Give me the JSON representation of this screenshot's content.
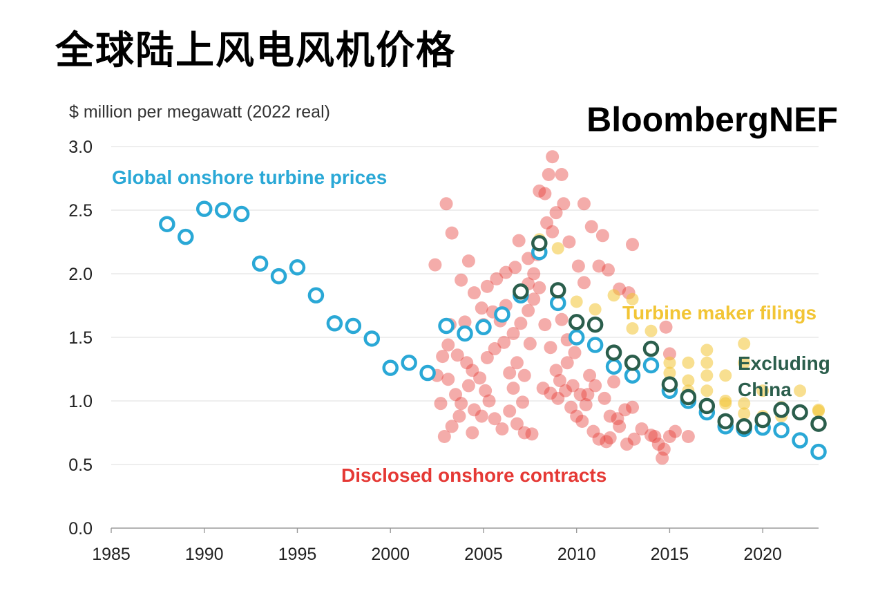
{
  "page": {
    "title": "全球陆上风电风机价格"
  },
  "chart_data": {
    "type": "scatter",
    "ylabel": "$ million per megawatt (2022 real)",
    "brand": "BloombergNEF",
    "xlim": [
      1985,
      2023
    ],
    "ylim": [
      0,
      3.0
    ],
    "x_ticks": [
      1985,
      1990,
      1995,
      2000,
      2005,
      2010,
      2015,
      2020
    ],
    "y_ticks": [
      0.0,
      0.5,
      1.0,
      1.5,
      2.0,
      2.5,
      3.0
    ],
    "y_tick_labels": [
      "0.0",
      "0.5",
      "1.0",
      "1.5",
      "2.0",
      "2.5",
      "3.0"
    ],
    "grid": "horizontal",
    "colors": {
      "global": "#2aa8d6",
      "excluding_china": "#2b5e4c",
      "contracts": "#e53935",
      "filings": "#f2c535"
    },
    "annotations": {
      "global": "Global onshore turbine prices",
      "filings": "Turbine maker filings",
      "excluding_china_line1": "Excluding",
      "excluding_china_line2": "China",
      "contracts": "Disclosed onshore contracts"
    },
    "series": [
      {
        "name": "Global onshore turbine prices",
        "style": "open-circle",
        "points": [
          [
            1988,
            2.39
          ],
          [
            1989,
            2.29
          ],
          [
            1990,
            2.51
          ],
          [
            1991,
            2.5
          ],
          [
            1992,
            2.47
          ],
          [
            1993,
            2.08
          ],
          [
            1994,
            1.98
          ],
          [
            1995,
            2.05
          ],
          [
            1996,
            1.83
          ],
          [
            1997,
            1.61
          ],
          [
            1998,
            1.59
          ],
          [
            1999,
            1.49
          ],
          [
            2000,
            1.26
          ],
          [
            2001,
            1.3
          ],
          [
            2002,
            1.22
          ],
          [
            2003,
            1.59
          ],
          [
            2004,
            1.53
          ],
          [
            2005,
            1.58
          ],
          [
            2006,
            1.68
          ],
          [
            2007,
            1.83
          ],
          [
            2008,
            2.17
          ],
          [
            2009,
            1.77
          ],
          [
            2010,
            1.5
          ],
          [
            2011,
            1.44
          ],
          [
            2012,
            1.27
          ],
          [
            2013,
            1.2
          ],
          [
            2014,
            1.28
          ],
          [
            2015,
            1.08
          ],
          [
            2016,
            1.0
          ],
          [
            2017,
            0.91
          ],
          [
            2018,
            0.8
          ],
          [
            2019,
            0.78
          ],
          [
            2020,
            0.79
          ],
          [
            2021,
            0.77
          ],
          [
            2022,
            0.69
          ],
          [
            2023,
            0.6
          ]
        ]
      },
      {
        "name": "Excluding China",
        "style": "open-circle",
        "points": [
          [
            2007,
            1.86
          ],
          [
            2008,
            2.24
          ],
          [
            2009,
            1.87
          ],
          [
            2010,
            1.62
          ],
          [
            2011,
            1.6
          ],
          [
            2012,
            1.38
          ],
          [
            2013,
            1.3
          ],
          [
            2014,
            1.41
          ],
          [
            2015,
            1.13
          ],
          [
            2016,
            1.03
          ],
          [
            2017,
            0.96
          ],
          [
            2018,
            0.84
          ],
          [
            2019,
            0.8
          ],
          [
            2020,
            0.85
          ],
          [
            2021,
            0.93
          ],
          [
            2022,
            0.91
          ],
          [
            2023,
            0.82
          ]
        ]
      },
      {
        "name": "Turbine maker filings",
        "style": "filled-circle",
        "points": [
          [
            2008,
            2.27
          ],
          [
            2009,
            2.2
          ],
          [
            2010,
            1.78
          ],
          [
            2011,
            1.72
          ],
          [
            2012,
            1.83
          ],
          [
            2013,
            1.57
          ],
          [
            2013,
            1.8
          ],
          [
            2014,
            1.55
          ],
          [
            2015,
            1.3
          ],
          [
            2015,
            1.22
          ],
          [
            2016,
            1.3
          ],
          [
            2016,
            1.16
          ],
          [
            2016,
            1.08
          ],
          [
            2017,
            1.4
          ],
          [
            2017,
            1.3
          ],
          [
            2017,
            1.2
          ],
          [
            2017,
            1.08
          ],
          [
            2018,
            1.2
          ],
          [
            2018,
            1.0
          ],
          [
            2018,
            0.98
          ],
          [
            2019,
            1.45
          ],
          [
            2019,
            1.3
          ],
          [
            2019,
            0.98
          ],
          [
            2019,
            0.9
          ],
          [
            2020,
            1.08
          ],
          [
            2020,
            0.88
          ],
          [
            2021,
            0.95
          ],
          [
            2021,
            0.88
          ],
          [
            2022,
            1.08
          ],
          [
            2022,
            0.9
          ],
          [
            2023,
            0.93
          ],
          [
            2023,
            0.92
          ]
        ]
      },
      {
        "name": "Disclosed onshore contracts",
        "style": "filled-circle",
        "points": [
          [
            2003.0,
            2.55
          ],
          [
            2003.3,
            2.32
          ],
          [
            2002.4,
            2.07
          ],
          [
            2004.2,
            2.1
          ],
          [
            2003.8,
            1.95
          ],
          [
            2004.5,
            1.85
          ],
          [
            2005.2,
            1.9
          ],
          [
            2005.7,
            1.96
          ],
          [
            2006.2,
            2.01
          ],
          [
            2006.7,
            2.05
          ],
          [
            2006.9,
            2.26
          ],
          [
            2007.4,
            2.12
          ],
          [
            2007.7,
            2.0
          ],
          [
            2008.0,
            2.65
          ],
          [
            2008.3,
            2.63
          ],
          [
            2008.5,
            2.78
          ],
          [
            2008.7,
            2.33
          ],
          [
            2008.9,
            2.48
          ],
          [
            2009.3,
            2.55
          ],
          [
            2009.6,
            2.25
          ],
          [
            2010.1,
            2.06
          ],
          [
            2010.4,
            1.93
          ],
          [
            2010.8,
            2.37
          ],
          [
            2011.2,
            2.06
          ],
          [
            2011.7,
            2.03
          ],
          [
            2012.3,
            1.88
          ],
          [
            2013.0,
            2.23
          ],
          [
            2008.7,
            2.92
          ],
          [
            2009.2,
            2.78
          ],
          [
            2010.4,
            2.55
          ],
          [
            2011.4,
            2.3
          ],
          [
            2003.1,
            1.44
          ],
          [
            2003.6,
            1.36
          ],
          [
            2004.1,
            1.3
          ],
          [
            2004.4,
            1.24
          ],
          [
            2004.8,
            1.18
          ],
          [
            2005.2,
            1.34
          ],
          [
            2005.6,
            1.41
          ],
          [
            2006.1,
            1.46
          ],
          [
            2006.6,
            1.53
          ],
          [
            2007.0,
            1.61
          ],
          [
            2007.4,
            1.71
          ],
          [
            2007.7,
            1.8
          ],
          [
            2008.0,
            1.89
          ],
          [
            2008.3,
            1.6
          ],
          [
            2008.6,
            1.42
          ],
          [
            2008.9,
            1.24
          ],
          [
            2009.1,
            1.16
          ],
          [
            2009.4,
            1.08
          ],
          [
            2009.7,
            0.95
          ],
          [
            2010.0,
            0.88
          ],
          [
            2010.3,
            0.84
          ],
          [
            2010.6,
            1.05
          ],
          [
            2010.9,
            0.76
          ],
          [
            2011.2,
            0.7
          ],
          [
            2011.6,
            0.68
          ],
          [
            2011.8,
            0.71
          ],
          [
            2012.2,
            0.86
          ],
          [
            2012.6,
            0.93
          ],
          [
            2013.0,
            0.95
          ],
          [
            2013.5,
            0.78
          ],
          [
            2014.0,
            0.73
          ],
          [
            2014.4,
            0.66
          ],
          [
            2014.7,
            0.62
          ],
          [
            2015.0,
            0.72
          ],
          [
            2015.3,
            0.76
          ],
          [
            2016.0,
            0.72
          ],
          [
            2012.7,
            0.66
          ],
          [
            2012.8,
            1.85
          ],
          [
            2014.8,
            1.58
          ],
          [
            2015.0,
            1.37
          ],
          [
            2003.1,
            1.17
          ],
          [
            2003.5,
            1.05
          ],
          [
            2003.8,
            0.98
          ],
          [
            2004.2,
            1.12
          ],
          [
            2004.5,
            0.93
          ],
          [
            2004.9,
            0.88
          ],
          [
            2005.3,
            1.0
          ],
          [
            2005.6,
            0.86
          ],
          [
            2006.0,
            0.78
          ],
          [
            2006.4,
            0.92
          ],
          [
            2006.8,
            0.82
          ],
          [
            2007.2,
            0.75
          ],
          [
            2007.6,
            0.74
          ],
          [
            2002.8,
            1.35
          ],
          [
            2002.5,
            1.2
          ],
          [
            2002.9,
            0.72
          ],
          [
            2003.3,
            0.8
          ],
          [
            2003.7,
            0.88
          ],
          [
            2004.4,
            0.75
          ],
          [
            2005.0,
            1.6
          ],
          [
            2005.5,
            1.7
          ],
          [
            2006.2,
            1.75
          ],
          [
            2006.8,
            1.3
          ],
          [
            2007.2,
            1.2
          ],
          [
            2007.5,
            1.45
          ],
          [
            2008.2,
            1.1
          ],
          [
            2008.6,
            1.06
          ],
          [
            2009.0,
            1.02
          ],
          [
            2009.5,
            1.3
          ],
          [
            2009.8,
            1.12
          ],
          [
            2010.2,
            1.05
          ],
          [
            2010.5,
            0.97
          ],
          [
            2011.0,
            1.12
          ],
          [
            2011.5,
            1.02
          ],
          [
            2012.0,
            1.15
          ],
          [
            2012.3,
            0.8
          ],
          [
            2013.1,
            0.7
          ],
          [
            2007.4,
            1.92
          ],
          [
            2007.9,
            2.15
          ],
          [
            2008.4,
            2.4
          ],
          [
            2009.2,
            1.64
          ],
          [
            2009.5,
            1.48
          ],
          [
            2004.9,
            1.73
          ],
          [
            2005.9,
            1.63
          ],
          [
            2006.4,
            1.22
          ],
          [
            2004.0,
            1.62
          ],
          [
            2003.2,
            1.6
          ],
          [
            2005.1,
            1.08
          ],
          [
            2006.6,
            1.1
          ],
          [
            2007.1,
            0.99
          ],
          [
            2009.9,
            1.38
          ],
          [
            2010.7,
            1.2
          ],
          [
            2011.8,
            0.88
          ],
          [
            2002.7,
            0.98
          ],
          [
            2014.6,
            0.55
          ],
          [
            2014.2,
            0.72
          ]
        ]
      }
    ]
  }
}
